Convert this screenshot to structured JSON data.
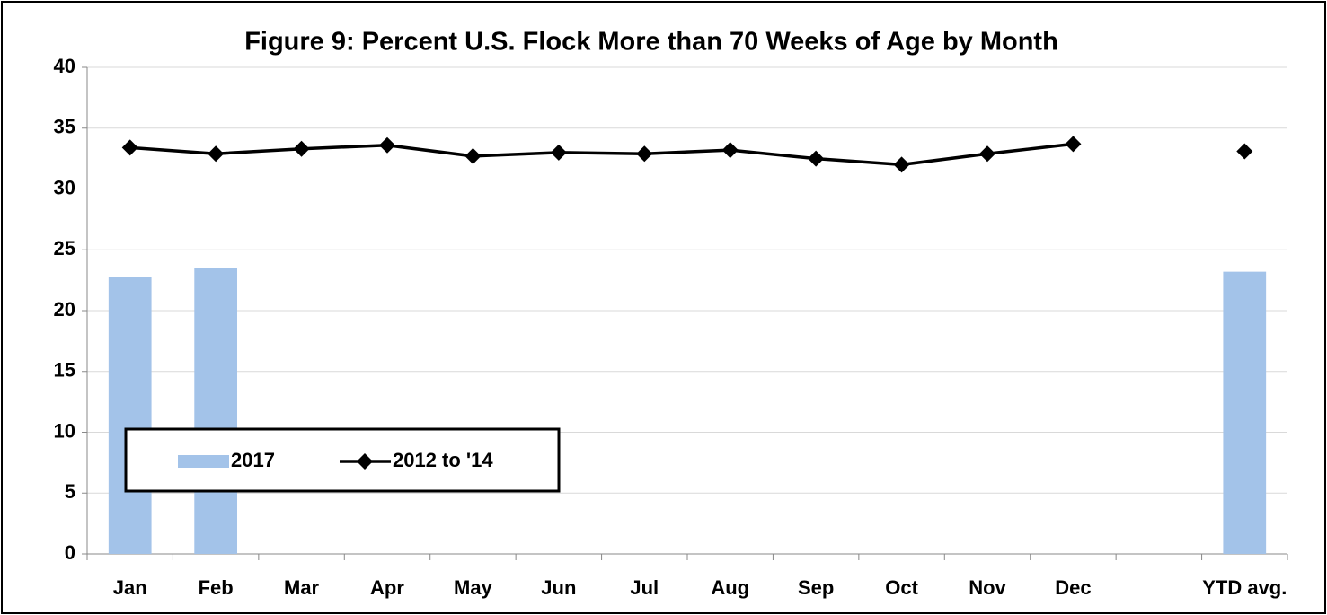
{
  "chart_data": {
    "type": "bar",
    "title": "Figure 9: Percent U.S. Flock More than 70 Weeks of Age by Month",
    "categories": [
      "Jan",
      "Feb",
      "Mar",
      "Apr",
      "May",
      "Jun",
      "Jul",
      "Aug",
      "Sep",
      "Oct",
      "Nov",
      "Dec",
      null,
      "YTD avg."
    ],
    "series": [
      {
        "name": "2017",
        "type": "bar",
        "color": "#a3c3e9",
        "values": [
          22.8,
          23.5,
          null,
          null,
          null,
          null,
          null,
          null,
          null,
          null,
          null,
          null,
          null,
          23.2
        ]
      },
      {
        "name": "2012 to '14",
        "type": "line",
        "color": "#000000",
        "values": [
          33.4,
          32.9,
          33.3,
          33.6,
          32.7,
          33.0,
          32.9,
          33.2,
          32.5,
          32.0,
          32.9,
          33.7,
          null,
          33.1
        ]
      }
    ],
    "ylim": [
      0,
      40
    ],
    "yticks": [
      0,
      5,
      10,
      15,
      20,
      25,
      30,
      35,
      40
    ],
    "grid": true,
    "legend": "bottom-left"
  }
}
